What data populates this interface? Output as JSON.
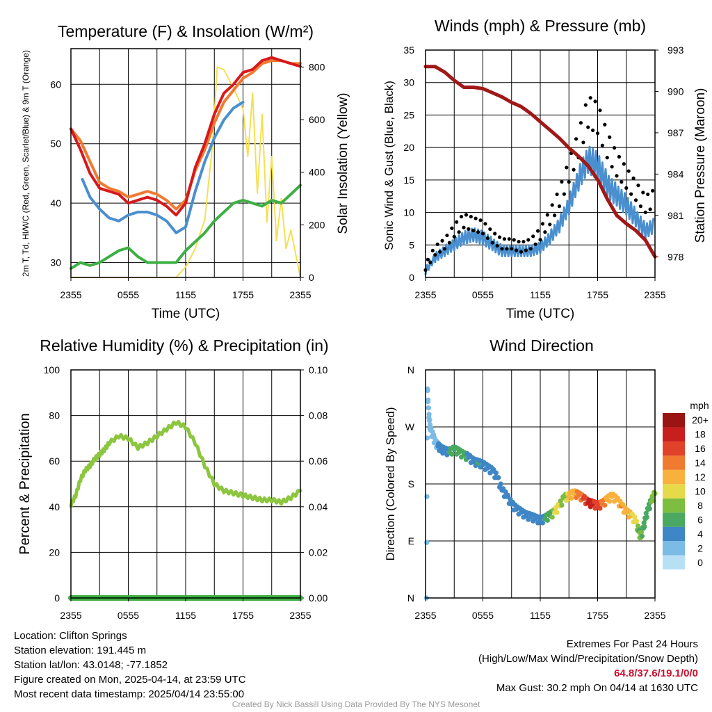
{
  "chart_data": [
    {
      "type": "line",
      "title": "Temperature (F) & Insolation (W/m²)",
      "xlabel": "Time (UTC)",
      "ylabel": "2m T, Td, HI/WC (Red, Green, Scarlet/Blue) & 9m T (Orange)",
      "ylabel2": "Solar Insolation (Yellow)",
      "x_ticks": [
        "2355",
        "0555",
        "1155",
        "1755",
        "2355"
      ],
      "xlim": [
        0,
        24
      ],
      "ylim": [
        27.5,
        66
      ],
      "y_ticks": [
        30,
        40,
        50,
        60
      ],
      "y2lim": [
        0,
        870
      ],
      "y2_ticks": [
        0,
        200,
        400,
        600,
        800
      ],
      "grid": true,
      "colors": {
        "temp_2m": "#d7191c",
        "temp_9m": "#f07a30",
        "dewpoint": "#3cb043",
        "hi_wc": "#4a8fcf",
        "insolation": "#f5e050"
      },
      "series": [
        {
          "name": "2m T",
          "color": "#d7191c",
          "axis": "left",
          "x": [
            0,
            1,
            2,
            3,
            4,
            5,
            6,
            7,
            8,
            9,
            10,
            11,
            12,
            13,
            14,
            15,
            16,
            17,
            18,
            19,
            20,
            21,
            22,
            23,
            24
          ],
          "y": [
            52.5,
            49,
            45,
            42.5,
            42,
            41.5,
            40,
            40.5,
            41,
            40.5,
            39.5,
            38,
            40,
            46,
            50,
            55,
            58.5,
            60,
            62,
            62.5,
            64,
            64.5,
            64,
            63.5,
            63
          ]
        },
        {
          "name": "9m T",
          "color": "#f07a30",
          "axis": "left",
          "x": [
            0,
            1,
            2,
            3,
            4,
            5,
            6,
            7,
            8,
            9,
            10,
            11,
            12,
            13,
            14,
            15,
            16,
            17,
            18,
            19,
            20,
            21,
            22,
            23,
            24
          ],
          "y": [
            52.5,
            50.5,
            47,
            43.5,
            42.5,
            42,
            41,
            41.5,
            42,
            41.5,
            40.5,
            39,
            40.5,
            45.5,
            49,
            53.5,
            57,
            59,
            61,
            62,
            63.5,
            64,
            64,
            63.5,
            63.5
          ]
        },
        {
          "name": "Td",
          "color": "#3cb043",
          "axis": "left",
          "x": [
            0,
            1,
            2,
            3,
            4,
            5,
            6,
            7,
            8,
            9,
            10,
            11,
            12,
            13,
            14,
            15,
            16,
            17,
            18,
            19,
            20,
            21,
            22,
            23,
            24
          ],
          "y": [
            29,
            30,
            29.5,
            30,
            31,
            32,
            32.5,
            31,
            30,
            30,
            30,
            30,
            32,
            33.5,
            35,
            37,
            38.5,
            40,
            40.5,
            40,
            39.5,
            40.5,
            40,
            41.5,
            43
          ]
        },
        {
          "name": "HI/WC",
          "color": "#4a8fcf",
          "axis": "left",
          "x": [
            1.2,
            2,
            3,
            4,
            5,
            6,
            7,
            8,
            9,
            10,
            11,
            12,
            13,
            14,
            15,
            16,
            17,
            18
          ],
          "y": [
            44,
            41,
            39,
            37.5,
            37,
            38,
            38.5,
            38.5,
            38,
            37,
            35,
            36,
            42,
            47,
            51,
            54,
            56,
            57
          ]
        },
        {
          "name": "Solar Insolation",
          "color": "#f5e050",
          "axis": "right",
          "x": [
            0,
            11,
            12,
            13,
            14,
            14.8,
            15.3,
            16,
            17,
            18,
            18.5,
            19,
            19.5,
            20,
            20.5,
            21,
            21.5,
            22,
            22.5,
            23,
            24
          ],
          "y": [
            0,
            0,
            40,
            110,
            220,
            500,
            800,
            790,
            720,
            640,
            460,
            700,
            320,
            620,
            210,
            460,
            140,
            300,
            110,
            180,
            0
          ]
        }
      ]
    },
    {
      "type": "line",
      "title": "Winds (mph) & Pressure (mb)",
      "xlabel": "Time (UTC)",
      "ylabel": "Sonic Wind & Gust (Blue, Black)",
      "ylabel2": "Station Pressure (Maroon)",
      "x_ticks": [
        "2355",
        "0555",
        "1155",
        "1755",
        "2355"
      ],
      "xlim": [
        0,
        24
      ],
      "ylim": [
        0,
        35
      ],
      "y_ticks": [
        0,
        5,
        10,
        15,
        20,
        25,
        30,
        35
      ],
      "y2lim": [
        976.5,
        993
      ],
      "y2_ticks": [
        978,
        981,
        984,
        987,
        990,
        993
      ],
      "grid": true,
      "colors": {
        "wind": "#4a8fcf",
        "gust": "#000000",
        "pressure": "#a01818"
      },
      "series": [
        {
          "name": "Sonic Wind",
          "color": "#4a8fcf",
          "axis": "left",
          "x": [
            0,
            1,
            2,
            3,
            4,
            5,
            6,
            7,
            8,
            9,
            10,
            11,
            12,
            13,
            14,
            15,
            16,
            17,
            18,
            19,
            20,
            21,
            22,
            23,
            24
          ],
          "y": [
            1,
            3,
            4,
            5,
            6,
            6.5,
            6,
            5,
            4,
            4,
            4,
            4,
            4.5,
            6,
            8,
            11,
            15,
            18,
            17,
            14,
            12.5,
            11,
            9,
            7,
            8
          ]
        },
        {
          "name": "Gust",
          "color": "#000000",
          "axis": "left",
          "x": [
            0,
            1,
            2,
            3,
            4,
            5,
            6,
            7,
            8,
            9,
            10,
            11,
            12,
            13,
            14,
            15,
            16,
            17,
            18,
            19,
            20,
            21,
            22,
            23,
            24
          ],
          "y": [
            1.5,
            4,
            5,
            7,
            8.5,
            8,
            7.5,
            6,
            5,
            5,
            4.5,
            5,
            6.5,
            9,
            12,
            16,
            20,
            25,
            24,
            20,
            17,
            15,
            13,
            11,
            12
          ]
        },
        {
          "name": "Station Pressure",
          "color": "#a01818",
          "axis": "right",
          "x": [
            0,
            1,
            2,
            3,
            4,
            5,
            6,
            7,
            8,
            9,
            10,
            11,
            12,
            13,
            14,
            15,
            16,
            17,
            18,
            19,
            20,
            21,
            22,
            23,
            24
          ],
          "y": [
            991.8,
            991.8,
            991.4,
            990.8,
            990.3,
            990.3,
            990.2,
            989.9,
            989.6,
            989.2,
            988.9,
            988.4,
            987.8,
            987.2,
            986.6,
            985.9,
            985.3,
            984.6,
            983.6,
            982.2,
            981.0,
            980.4,
            979.9,
            979.2,
            978.0
          ]
        }
      ]
    },
    {
      "type": "line",
      "title": "Relative Humidity (%) & Precipitation (in)",
      "xlabel": "",
      "ylabel": "Percent & Precipitation",
      "x_ticks": [
        "2355",
        "0555",
        "1155",
        "1755",
        "2355"
      ],
      "xlim": [
        0,
        24
      ],
      "ylim": [
        0,
        100
      ],
      "y_ticks": [
        0,
        20,
        40,
        60,
        80,
        100
      ],
      "y2lim": [
        0,
        0.1
      ],
      "y2_ticks": [
        "0.00",
        "0.02",
        "0.04",
        "0.06",
        "0.08",
        "0.10"
      ],
      "grid": true,
      "colors": {
        "rh": "#8cc63f",
        "precip": "#3cb043"
      },
      "series": [
        {
          "name": "Relative Humidity",
          "color": "#8cc63f",
          "axis": "left",
          "x": [
            0,
            0.5,
            1,
            1.5,
            2,
            2.5,
            3,
            3.5,
            4,
            5,
            6,
            7,
            8,
            9,
            10,
            11,
            12,
            13,
            14,
            15,
            16,
            17,
            18,
            19,
            20,
            21,
            22,
            23,
            24
          ],
          "y": [
            41,
            45,
            52,
            56,
            58,
            61,
            63,
            65,
            68,
            71,
            70,
            66,
            68,
            71,
            74,
            77,
            75,
            68,
            58,
            50,
            47,
            46,
            45,
            44,
            43,
            43,
            42,
            44,
            47
          ]
        },
        {
          "name": "Precipitation",
          "color": "#3cb043",
          "axis": "right",
          "x": [
            0,
            24
          ],
          "y": [
            0,
            0
          ]
        }
      ]
    },
    {
      "type": "scatter",
      "title": "Wind Direction",
      "xlabel": "",
      "ylabel": "Direction (Colored By Speed)",
      "x_ticks": [
        "2355",
        "0555",
        "1155",
        "1755",
        "2355"
      ],
      "xlim": [
        0,
        24
      ],
      "y_ticks": [
        "N",
        "E",
        "S",
        "W",
        "N"
      ],
      "ylim": [
        0,
        360
      ],
      "grid": true,
      "colorbar": {
        "unit": "mph",
        "labels": [
          "0",
          "2",
          "4",
          "6",
          "8",
          "10",
          "12",
          "14",
          "16",
          "18",
          "20+"
        ],
        "colors": [
          "#b8e0f5",
          "#7cbbe6",
          "#3f86c6",
          "#4aa860",
          "#7dbd3f",
          "#e6d94a",
          "#f7b13c",
          "#f07a30",
          "#e0432a",
          "#c81e1e",
          "#9a1414"
        ]
      },
      "points": [
        {
          "x": 0.1,
          "dir": 0,
          "speed": 1
        },
        {
          "x": 0.2,
          "dir": 330,
          "speed": 1
        },
        {
          "x": 0.3,
          "dir": 300,
          "speed": 1
        },
        {
          "x": 0.4,
          "dir": 280,
          "speed": 1
        },
        {
          "x": 0.5,
          "dir": 265,
          "speed": 2
        },
        {
          "x": 0.8,
          "dir": 255,
          "speed": 2
        },
        {
          "x": 1.0,
          "dir": 245,
          "speed": 2
        },
        {
          "x": 1.3,
          "dir": 240,
          "speed": 3
        },
        {
          "x": 1.6,
          "dir": 235,
          "speed": 4
        },
        {
          "x": 2.0,
          "dir": 232,
          "speed": 4
        },
        {
          "x": 2.5,
          "dir": 230,
          "speed": 5
        },
        {
          "x": 3.0,
          "dir": 234,
          "speed": 6
        },
        {
          "x": 3.5,
          "dir": 230,
          "speed": 5
        },
        {
          "x": 4.0,
          "dir": 225,
          "speed": 6
        },
        {
          "x": 4.5,
          "dir": 222,
          "speed": 4
        },
        {
          "x": 5.0,
          "dir": 215,
          "speed": 4
        },
        {
          "x": 5.5,
          "dir": 213,
          "speed": 5
        },
        {
          "x": 6.0,
          "dir": 210,
          "speed": 4
        },
        {
          "x": 6.5,
          "dir": 205,
          "speed": 4
        },
        {
          "x": 7.0,
          "dir": 200,
          "speed": 4
        },
        {
          "x": 7.5,
          "dir": 190,
          "speed": 4
        },
        {
          "x": 8.0,
          "dir": 170,
          "speed": 4
        },
        {
          "x": 8.5,
          "dir": 160,
          "speed": 3
        },
        {
          "x": 9.0,
          "dir": 148,
          "speed": 4
        },
        {
          "x": 9.5,
          "dir": 140,
          "speed": 4
        },
        {
          "x": 10.0,
          "dir": 135,
          "speed": 4
        },
        {
          "x": 10.5,
          "dir": 130,
          "speed": 4
        },
        {
          "x": 11.0,
          "dir": 128,
          "speed": 4
        },
        {
          "x": 11.5,
          "dir": 125,
          "speed": 4
        },
        {
          "x": 12.0,
          "dir": 122,
          "speed": 4
        },
        {
          "x": 12.5,
          "dir": 125,
          "speed": 5
        },
        {
          "x": 13.0,
          "dir": 130,
          "speed": 6
        },
        {
          "x": 13.5,
          "dir": 135,
          "speed": 9
        },
        {
          "x": 14.0,
          "dir": 145,
          "speed": 9
        },
        {
          "x": 14.5,
          "dir": 158,
          "speed": 8
        },
        {
          "x": 15.0,
          "dir": 160,
          "speed": 11
        },
        {
          "x": 15.5,
          "dir": 165,
          "speed": 12
        },
        {
          "x": 16.0,
          "dir": 162,
          "speed": 14
        },
        {
          "x": 16.5,
          "dir": 157,
          "speed": 15
        },
        {
          "x": 17.0,
          "dir": 150,
          "speed": 17
        },
        {
          "x": 17.5,
          "dir": 148,
          "speed": 17
        },
        {
          "x": 18.0,
          "dir": 145,
          "speed": 16
        },
        {
          "x": 18.5,
          "dir": 148,
          "speed": 14
        },
        {
          "x": 19.0,
          "dir": 155,
          "speed": 12
        },
        {
          "x": 19.5,
          "dir": 160,
          "speed": 11
        },
        {
          "x": 20.0,
          "dir": 155,
          "speed": 12
        },
        {
          "x": 20.5,
          "dir": 145,
          "speed": 13
        },
        {
          "x": 21.0,
          "dir": 135,
          "speed": 12
        },
        {
          "x": 21.5,
          "dir": 130,
          "speed": 11
        },
        {
          "x": 22.0,
          "dir": 120,
          "speed": 10
        },
        {
          "x": 22.3,
          "dir": 105,
          "speed": 6
        },
        {
          "x": 22.5,
          "dir": 95,
          "speed": 8
        },
        {
          "x": 22.8,
          "dir": 110,
          "speed": 5
        },
        {
          "x": 23.0,
          "dir": 125,
          "speed": 6
        },
        {
          "x": 23.3,
          "dir": 140,
          "speed": 5
        },
        {
          "x": 23.6,
          "dir": 152,
          "speed": 7
        },
        {
          "x": 24.0,
          "dir": 165,
          "speed": 7
        }
      ]
    }
  ],
  "info": {
    "location": "Location: Clifton Springs",
    "elevation": "Station elevation: 191.445 m",
    "latlon": "Station lat/lon: 43.0148; -77.1852",
    "created": "Figure created on Mon, 2025-04-14, at 23:59 UTC",
    "recent": "Most recent data timestamp: 2025/04/14 23:55:00"
  },
  "extremes": {
    "title": "Extremes For Past 24 Hours",
    "legend": "(High/Low/Max Wind/Precipitation/Snow Depth)",
    "values": "64.8/37.6/19.1/0/0",
    "gust": "Max Gust: 30.2 mph On 04/14 at 1630 UTC"
  },
  "credit": "Created By Nick Bassill Using Data Provided By The NYS Mesonet"
}
